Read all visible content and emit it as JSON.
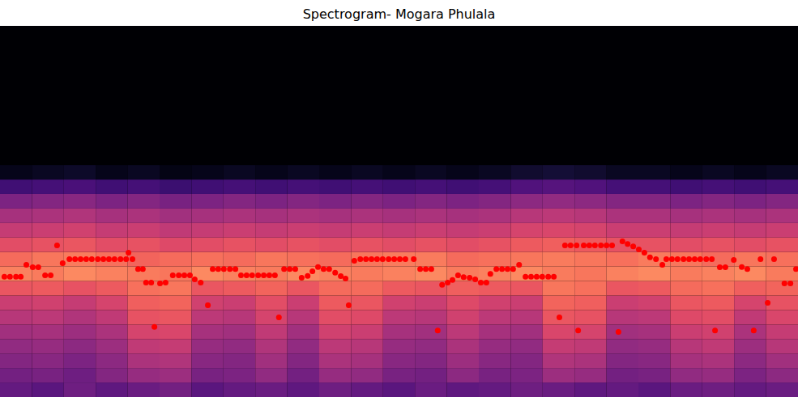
{
  "chart_data": {
    "type": "heatmap",
    "title": "Spectrogram- Mogara Phulala",
    "xlim": [
      0,
      200
    ],
    "ylim": [
      0,
      128
    ],
    "tick_labels": false,
    "spectrogram": {
      "x_edges": [
        0,
        8,
        16,
        24,
        32,
        40,
        48,
        56,
        64,
        72,
        80,
        88,
        96,
        104,
        112,
        120,
        128,
        136,
        144,
        152,
        160,
        168,
        176,
        184,
        192,
        200
      ],
      "y_edges": [
        0,
        5,
        10,
        15,
        20,
        25,
        30,
        35,
        40,
        45,
        50,
        55,
        60,
        65,
        70,
        75,
        80
      ],
      "value_range": [
        -80,
        0
      ],
      "values": [
        [
          -56,
          -58,
          -54,
          -57,
          -55,
          -53,
          -58,
          -56,
          -55,
          -57,
          -54,
          -56,
          -58,
          -55,
          -57,
          -56,
          -54,
          -55,
          -57,
          -56,
          -58,
          -55,
          -54,
          -56,
          -55
        ],
        [
          -53,
          -52,
          -54,
          -50,
          -46,
          -45,
          -52,
          -51,
          -47,
          -53,
          -46,
          -47,
          -52,
          -53,
          -48,
          -52,
          -51,
          -45,
          -46,
          -53,
          -52,
          -47,
          -46,
          -51,
          -48
        ],
        [
          -50,
          -49,
          -51,
          -48,
          -42,
          -41,
          -49,
          -50,
          -44,
          -50,
          -42,
          -43,
          -49,
          -50,
          -45,
          -49,
          -50,
          -41,
          -42,
          -50,
          -49,
          -43,
          -42,
          -48,
          -44
        ],
        [
          -47,
          -46,
          -48,
          -45,
          -38,
          -37,
          -46,
          -47,
          -41,
          -47,
          -39,
          -40,
          -46,
          -47,
          -42,
          -46,
          -47,
          -37,
          -38,
          -47,
          -46,
          -40,
          -38,
          -45,
          -40
        ],
        [
          -44,
          -43,
          -45,
          -42,
          -34,
          -33,
          -43,
          -44,
          -38,
          -44,
          -35,
          -36,
          -43,
          -44,
          -39,
          -43,
          -44,
          -33,
          -34,
          -44,
          -43,
          -36,
          -35,
          -42,
          -37
        ],
        [
          -40,
          -39,
          -41,
          -38,
          -30,
          -29,
          -39,
          -40,
          -34,
          -40,
          -31,
          -32,
          -39,
          -40,
          -35,
          -39,
          -40,
          -29,
          -30,
          -40,
          -39,
          -32,
          -31,
          -38,
          -33
        ],
        [
          -36,
          -35,
          -37,
          -34,
          -27,
          -26,
          -35,
          -36,
          -31,
          -36,
          -28,
          -29,
          -35,
          -36,
          -32,
          -35,
          -36,
          -26,
          -27,
          -36,
          -35,
          -29,
          -28,
          -34,
          -30
        ],
        [
          -29,
          -28,
          -30,
          -28,
          -24,
          -23,
          -29,
          -28,
          -26,
          -29,
          -25,
          -25,
          -28,
          -29,
          -27,
          -28,
          -29,
          -23,
          -24,
          -29,
          -28,
          -25,
          -24,
          -27,
          -26
        ],
        [
          -21,
          -22,
          -20,
          -21,
          -22,
          -23,
          -20,
          -21,
          -22,
          -20,
          -21,
          -22,
          -21,
          -20,
          -22,
          -21,
          -20,
          -22,
          -23,
          -21,
          -20,
          -22,
          -21,
          -20,
          -22
        ],
        [
          -25,
          -23,
          -22,
          -24,
          -26,
          -25,
          -24,
          -25,
          -23,
          -24,
          -25,
          -23,
          -22,
          -22,
          -25,
          -24,
          -23,
          -22,
          -23,
          -24,
          -22,
          -23,
          -25,
          -23,
          -24
        ],
        [
          -31,
          -30,
          -29,
          -31,
          -30,
          -32,
          -31,
          -30,
          -31,
          -30,
          -31,
          -30,
          -31,
          -30,
          -31,
          -30,
          -28,
          -27,
          -28,
          -30,
          -30,
          -31,
          -30,
          -31,
          -30
        ],
        [
          -37,
          -36,
          -35,
          -37,
          -36,
          -38,
          -37,
          -36,
          -37,
          -36,
          -37,
          -36,
          -37,
          -36,
          -37,
          -36,
          -34,
          -33,
          -34,
          -36,
          -36,
          -37,
          -36,
          -37,
          -36
        ],
        [
          -43,
          -42,
          -41,
          -43,
          -42,
          -44,
          -43,
          -42,
          -43,
          -42,
          -43,
          -42,
          -43,
          -42,
          -43,
          -42,
          -40,
          -39,
          -40,
          -42,
          -42,
          -43,
          -42,
          -43,
          -42
        ],
        [
          -51,
          -50,
          -49,
          -51,
          -50,
          -52,
          -51,
          -50,
          -51,
          -50,
          -51,
          -50,
          -51,
          -50,
          -51,
          -50,
          -48,
          -47,
          -48,
          -50,
          -50,
          -51,
          -50,
          -51,
          -50
        ],
        [
          -63,
          -62,
          -61,
          -63,
          -62,
          -64,
          -63,
          -62,
          -63,
          -62,
          -63,
          -62,
          -63,
          -62,
          -63,
          -62,
          -60,
          -59,
          -60,
          -62,
          -62,
          -63,
          -62,
          -63,
          -62
        ],
        [
          -76,
          -75,
          -74,
          -76,
          -75,
          -77,
          -76,
          -75,
          -76,
          -75,
          -76,
          -75,
          -76,
          -75,
          -76,
          -75,
          -73,
          -72,
          -73,
          -75,
          -75,
          -76,
          -75,
          -76,
          -75
        ]
      ]
    },
    "series": [
      {
        "type": "scatter",
        "color": "#ff0000",
        "marker": "circle",
        "x": [
          1,
          2.4,
          3.9,
          5.1,
          6.5,
          8.1,
          9.5,
          11.2,
          12.6,
          14.2,
          15.6,
          17.3,
          18.7,
          20.1,
          21.5,
          22.9,
          24.4,
          25.8,
          27.2,
          28.6,
          30.1,
          31.5,
          32.1,
          33.1,
          34.5,
          35.7,
          36.5,
          37.8,
          38.6,
          40,
          41.4,
          43.2,
          44.7,
          46.1,
          47.5,
          48.7,
          50.2,
          52,
          53.2,
          54.6,
          56,
          57.5,
          58.9,
          60.3,
          61.7,
          63.1,
          64.6,
          66,
          67.4,
          68.8,
          69.8,
          71.1,
          72.5,
          73.9,
          75.5,
          77,
          78.2,
          79.6,
          81,
          82.4,
          83.9,
          85.3,
          86.5,
          87.3,
          88.7,
          90.2,
          91.6,
          93,
          94.4,
          95.8,
          97.3,
          98.7,
          100.1,
          101.5,
          103.6,
          105.2,
          106.6,
          108,
          109.6,
          110.7,
          112.1,
          113.3,
          114.7,
          116.1,
          117.6,
          119,
          120.4,
          121.8,
          122.8,
          124.3,
          125.7,
          127.1,
          128.5,
          130,
          131.6,
          133,
          134.4,
          135.8,
          137.3,
          138.7,
          140.1,
          141.5,
          142.9,
          144.4,
          144.8,
          146.2,
          147.6,
          149,
          150.5,
          151.9,
          153.3,
          154.9,
          155.9,
          157.2,
          158.6,
          160,
          161.4,
          162.8,
          164.3,
          165.9,
          166.9,
          168.3,
          169.7,
          171.2,
          172.6,
          174,
          175.4,
          176.9,
          178.3,
          179.1,
          180.3,
          181.7,
          183.8,
          185.8,
          187.2,
          188.8,
          190.5,
          192.3,
          193.9,
          196.5,
          198,
          199.4
        ],
        "values": [
          41.6,
          41.6,
          41.6,
          41.6,
          45.7,
          44.9,
          44.9,
          42.1,
          42.1,
          52.4,
          46.3,
          47.7,
          47.7,
          47.7,
          47.7,
          47.7,
          47.7,
          47.7,
          47.7,
          47.7,
          47.7,
          47.7,
          49.9,
          47.7,
          44.3,
          44.3,
          39.6,
          39.6,
          24.3,
          39.3,
          39.6,
          42.1,
          42.1,
          42.1,
          42.1,
          40.7,
          39.6,
          31.8,
          44.3,
          44.3,
          44.3,
          44.3,
          44.3,
          42.1,
          42.1,
          42.1,
          42.1,
          42.1,
          42.1,
          42.1,
          27.6,
          44.3,
          44.3,
          44.3,
          41.3,
          41.9,
          43.5,
          45,
          44.3,
          44.3,
          43,
          41.8,
          41,
          31.8,
          47.1,
          47.7,
          47.7,
          47.7,
          47.7,
          47.7,
          47.7,
          47.7,
          47.7,
          47.7,
          47.7,
          44.3,
          44.3,
          44.3,
          23.1,
          38.8,
          39.6,
          40.5,
          42.1,
          41.5,
          41.3,
          40.7,
          39.6,
          39.6,
          42.6,
          44.3,
          44.3,
          44.3,
          44.3,
          45.7,
          41.6,
          41.6,
          41.6,
          41.6,
          41.6,
          41.6,
          27.6,
          52.4,
          52.4,
          52.4,
          23.1,
          52.4,
          52.4,
          52.4,
          52.4,
          52.4,
          52.4,
          22.6,
          53.8,
          52.9,
          52.1,
          51,
          49.9,
          48.3,
          47.7,
          45.7,
          47.7,
          47.7,
          47.7,
          47.7,
          47.7,
          47.7,
          47.7,
          47.7,
          47.7,
          23.1,
          44.9,
          44.9,
          47.4,
          45,
          44.3,
          23.1,
          47.7,
          32.6,
          47.7,
          39.3,
          39.3,
          44.3
        ]
      }
    ]
  }
}
